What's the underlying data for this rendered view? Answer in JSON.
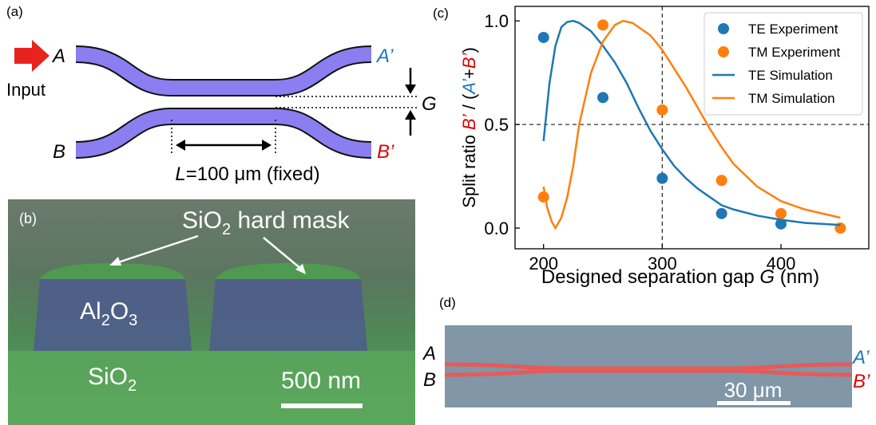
{
  "panel_a": {
    "label": "(a)",
    "input": "Input",
    "port_a": "A",
    "port_a_out": "A’",
    "port_b": "B",
    "port_b_out": "B’",
    "gap": "G",
    "length_parts": [
      "L",
      "=100 μm (fixed)"
    ]
  },
  "panel_b": {
    "label": "(b)",
    "mask_parts": [
      "SiO",
      "2",
      " hard mask"
    ],
    "core_parts": [
      "Al",
      "2",
      "O",
      "3"
    ],
    "substrate_parts": [
      "SiO",
      "2"
    ],
    "scale": "500 nm"
  },
  "panel_d": {
    "label": "(d)",
    "port_a": "A",
    "port_b": "B",
    "port_a_out": "A’",
    "port_b_out": "B’",
    "scale": "30 μm"
  },
  "chart_data": {
    "type": "scatter",
    "panel_label": "(c)",
    "xlabel_parts": [
      "Designed separation gap ",
      "G",
      " (nm)"
    ],
    "ylabel_parts": [
      {
        "text": "Split ratio ",
        "color": "#000000"
      },
      {
        "text": "B’",
        "color": "#e00000"
      },
      {
        "text": " / (",
        "color": "#000000"
      },
      {
        "text": "A’",
        "color": "#1f77b4"
      },
      {
        "text": "+",
        "color": "#000000"
      },
      {
        "text": "B’",
        "color": "#e00000"
      },
      {
        "text": ")",
        "color": "#000000"
      }
    ],
    "xlim": [
      176,
      474
    ],
    "ylim": [
      -0.1,
      1.07
    ],
    "xticks": [
      200,
      300,
      400
    ],
    "yticks": [
      {
        "value": 0,
        "label": "0.0"
      },
      0.5,
      {
        "value": 1,
        "label": "1.0"
      }
    ],
    "reference_lines": {
      "x": 300,
      "y": 0.5
    },
    "legend": "upper right",
    "series": [
      {
        "name": "TE Experiment",
        "color": "#1f77b4",
        "style": "marker",
        "x": [
          200,
          250,
          300,
          350,
          400
        ],
        "values": [
          0.92,
          0.63,
          0.24,
          0.07,
          0.02
        ]
      },
      {
        "name": "TM Experiment",
        "color": "#ff7f0e",
        "style": "marker",
        "x": [
          200,
          250,
          300,
          350,
          400,
          450
        ],
        "values": [
          0.15,
          0.98,
          0.57,
          0.23,
          0.07,
          0.0
        ]
      },
      {
        "name": "TE Simulation",
        "color": "#1f77b4",
        "style": "line",
        "x": [
          200,
          205,
          210,
          215,
          220,
          225,
          230,
          240,
          250,
          260,
          270,
          280,
          290,
          300,
          310,
          320,
          330,
          340,
          350,
          360,
          380,
          400,
          420,
          450
        ],
        "values": [
          0.42,
          0.7,
          0.88,
          0.97,
          0.995,
          1.0,
          0.99,
          0.95,
          0.88,
          0.8,
          0.7,
          0.58,
          0.47,
          0.38,
          0.3,
          0.24,
          0.19,
          0.15,
          0.11,
          0.09,
          0.06,
          0.04,
          0.025,
          0.015
        ]
      },
      {
        "name": "TM Simulation",
        "color": "#ff7f0e",
        "style": "line",
        "x": [
          200,
          203,
          207,
          210,
          215,
          220,
          225,
          230,
          240,
          250,
          260,
          267,
          275,
          290,
          300,
          310,
          320,
          330,
          340,
          350,
          360,
          380,
          400,
          420,
          450
        ],
        "values": [
          0.2,
          0.1,
          0.03,
          0.0,
          0.05,
          0.15,
          0.3,
          0.5,
          0.75,
          0.9,
          0.98,
          1.0,
          0.99,
          0.93,
          0.86,
          0.77,
          0.68,
          0.58,
          0.48,
          0.39,
          0.31,
          0.2,
          0.13,
          0.09,
          0.05
        ]
      }
    ]
  }
}
